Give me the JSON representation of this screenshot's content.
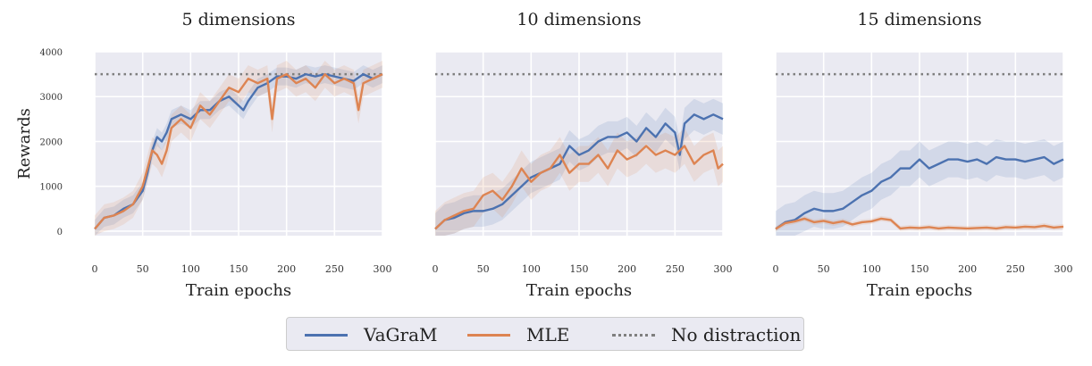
{
  "colors": {
    "vagram": "#4c72b0",
    "mle": "#dd8452",
    "no_distraction": "#7f7f7f",
    "panel_bg": "#eaeaf2",
    "grid": "#ffffff"
  },
  "legend": {
    "items": [
      {
        "label": "VaGraM",
        "style": "solid",
        "color": "#4c72b0"
      },
      {
        "label": "MLE",
        "style": "solid",
        "color": "#dd8452"
      },
      {
        "label": "No distraction",
        "style": "dotted",
        "color": "#7f7f7f"
      }
    ]
  },
  "chart_data": [
    {
      "type": "line",
      "title": "5 dimensions",
      "xlabel": "Train epochs",
      "ylabel": "Rewards",
      "xlim": [
        0,
        300
      ],
      "ylim": [
        -100,
        4000
      ],
      "xticks": [
        0,
        50,
        100,
        150,
        200,
        250,
        300
      ],
      "yticks": [
        0,
        1000,
        2000,
        3000,
        4000
      ],
      "grid": true,
      "reference_line": {
        "name": "No distraction",
        "y": 3500,
        "style": "dotted"
      },
      "series": [
        {
          "name": "VaGraM",
          "band": 200,
          "x": [
            0,
            10,
            20,
            30,
            40,
            50,
            55,
            60,
            65,
            70,
            75,
            80,
            90,
            100,
            110,
            120,
            130,
            140,
            150,
            155,
            160,
            170,
            180,
            190,
            200,
            210,
            220,
            230,
            240,
            250,
            260,
            270,
            280,
            290,
            300
          ],
          "y": [
            50,
            300,
            350,
            500,
            600,
            900,
            1300,
            1800,
            2100,
            2000,
            2200,
            2500,
            2600,
            2500,
            2700,
            2700,
            2900,
            3000,
            2800,
            2700,
            2900,
            3200,
            3300,
            3450,
            3450,
            3400,
            3500,
            3450,
            3500,
            3450,
            3400,
            3350,
            3500,
            3400,
            3500
          ]
        },
        {
          "name": "MLE",
          "band": 300,
          "x": [
            0,
            10,
            20,
            30,
            40,
            50,
            55,
            60,
            65,
            70,
            75,
            80,
            90,
            100,
            110,
            120,
            130,
            140,
            150,
            160,
            170,
            180,
            185,
            190,
            200,
            210,
            220,
            230,
            240,
            250,
            260,
            270,
            275,
            280,
            290,
            300
          ],
          "y": [
            50,
            300,
            350,
            450,
            600,
            1000,
            1400,
            1800,
            1700,
            1500,
            1800,
            2300,
            2500,
            2300,
            2800,
            2600,
            2900,
            3200,
            3100,
            3400,
            3300,
            3400,
            2500,
            3400,
            3500,
            3300,
            3400,
            3200,
            3500,
            3300,
            3400,
            3300,
            2700,
            3300,
            3400,
            3500
          ]
        }
      ]
    },
    {
      "type": "line",
      "title": "10 dimensions",
      "xlabel": "Train epochs",
      "ylabel": "",
      "xlim": [
        0,
        300
      ],
      "ylim": [
        -100,
        4000
      ],
      "xticks": [
        0,
        50,
        100,
        150,
        200,
        250,
        300
      ],
      "yticks": [
        0,
        1000,
        2000,
        3000,
        4000
      ],
      "grid": true,
      "reference_line": {
        "name": "No distraction",
        "y": 3500,
        "style": "dotted"
      },
      "series": [
        {
          "name": "VaGraM",
          "band": 350,
          "x": [
            0,
            10,
            20,
            30,
            40,
            50,
            60,
            70,
            80,
            90,
            100,
            110,
            120,
            130,
            140,
            150,
            160,
            170,
            180,
            190,
            200,
            210,
            220,
            230,
            240,
            250,
            255,
            260,
            270,
            280,
            290,
            300
          ],
          "y": [
            50,
            250,
            300,
            400,
            450,
            450,
            500,
            600,
            800,
            1000,
            1200,
            1300,
            1400,
            1500,
            1900,
            1700,
            1800,
            2000,
            2100,
            2100,
            2200,
            2000,
            2300,
            2100,
            2400,
            2200,
            1700,
            2400,
            2600,
            2500,
            2600,
            2500
          ]
        },
        {
          "name": "MLE",
          "band": 400,
          "x": [
            0,
            10,
            20,
            30,
            40,
            50,
            60,
            70,
            80,
            90,
            100,
            110,
            120,
            130,
            140,
            150,
            160,
            170,
            180,
            190,
            200,
            210,
            220,
            230,
            240,
            250,
            260,
            270,
            280,
            290,
            295,
            300
          ],
          "y": [
            50,
            250,
            350,
            450,
            500,
            800,
            900,
            700,
            1000,
            1400,
            1100,
            1300,
            1400,
            1700,
            1300,
            1500,
            1500,
            1700,
            1400,
            1800,
            1600,
            1700,
            1900,
            1700,
            1800,
            1700,
            1900,
            1500,
            1700,
            1800,
            1400,
            1500
          ]
        }
      ]
    },
    {
      "type": "line",
      "title": "15 dimensions",
      "xlabel": "Train epochs",
      "ylabel": "",
      "xlim": [
        0,
        300
      ],
      "ylim": [
        -100,
        4000
      ],
      "xticks": [
        0,
        50,
        100,
        150,
        200,
        250,
        300
      ],
      "yticks": [
        0,
        1000,
        2000,
        3000,
        4000
      ],
      "grid": true,
      "reference_line": {
        "name": "No distraction",
        "y": 3500,
        "style": "dotted"
      },
      "series": [
        {
          "name": "VaGraM",
          "band": 400,
          "x": [
            0,
            10,
            20,
            30,
            40,
            50,
            60,
            70,
            80,
            90,
            100,
            110,
            120,
            130,
            140,
            150,
            160,
            170,
            180,
            190,
            200,
            210,
            220,
            230,
            240,
            250,
            260,
            270,
            280,
            290,
            300
          ],
          "y": [
            50,
            200,
            250,
            400,
            500,
            450,
            450,
            500,
            650,
            800,
            900,
            1100,
            1200,
            1400,
            1400,
            1600,
            1400,
            1500,
            1600,
            1600,
            1550,
            1600,
            1500,
            1650,
            1600,
            1600,
            1550,
            1600,
            1650,
            1500,
            1600
          ]
        },
        {
          "name": "MLE",
          "band": 60,
          "x": [
            0,
            10,
            20,
            30,
            40,
            50,
            60,
            70,
            80,
            90,
            100,
            110,
            120,
            130,
            140,
            150,
            160,
            170,
            180,
            190,
            200,
            210,
            220,
            230,
            240,
            250,
            260,
            270,
            280,
            290,
            300
          ],
          "y": [
            50,
            180,
            220,
            280,
            200,
            230,
            180,
            220,
            150,
            200,
            220,
            280,
            250,
            60,
            80,
            70,
            90,
            60,
            80,
            70,
            60,
            70,
            80,
            60,
            90,
            80,
            100,
            90,
            120,
            80,
            100
          ]
        }
      ]
    }
  ]
}
